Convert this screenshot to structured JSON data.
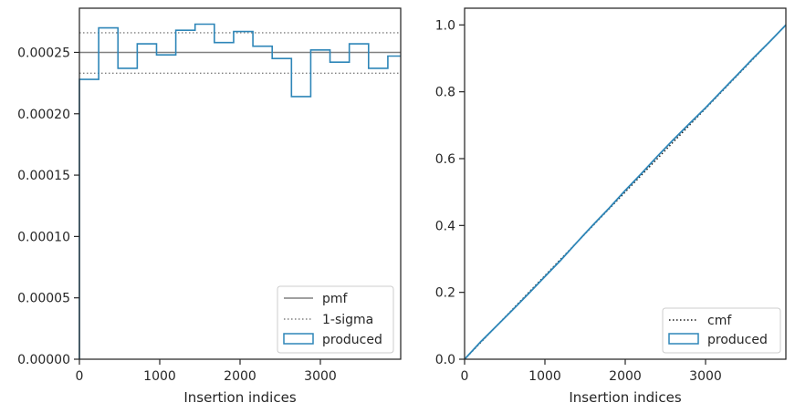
{
  "colors": {
    "produced": "#2e86b8",
    "pmf": "#808080",
    "sigma": "#808080",
    "cmf": "#1a1a1a",
    "axis": "#262626"
  },
  "chart_data": [
    {
      "type": "histogram",
      "xlabel": "Insertion indices",
      "xlim": [
        0,
        4000
      ],
      "ylim": [
        0,
        0.000286
      ],
      "xticks": [
        0,
        1000,
        2000,
        3000
      ],
      "xtick_labels": [
        "0",
        "1000",
        "2000",
        "3000"
      ],
      "yticks": [
        0,
        5e-05,
        0.0001,
        0.00015,
        0.0002,
        0.00025
      ],
      "ytick_labels": [
        "0.00000",
        "0.00005",
        "0.00010",
        "0.00015",
        "0.00020",
        "0.00025"
      ],
      "legend": {
        "position": "lower-right",
        "entries": [
          {
            "label": "pmf",
            "style": "solid-line"
          },
          {
            "label": "1-sigma",
            "style": "dotted-line"
          },
          {
            "label": "produced",
            "style": "step-box"
          }
        ]
      },
      "pmf": 0.00025,
      "sigma_band": [
        0.000233,
        0.000266
      ],
      "bin_edges": [
        0,
        240,
        480,
        720,
        960,
        1200,
        1440,
        1680,
        1920,
        2160,
        2400,
        2640,
        2880,
        3120,
        3360,
        3600,
        3840,
        4000
      ],
      "values": [
        0.000228,
        0.00027,
        0.000237,
        0.000257,
        0.000248,
        0.000268,
        0.000273,
        0.000258,
        0.000267,
        0.000255,
        0.000245,
        0.000214,
        0.000252,
        0.000242,
        0.000257,
        0.000237,
        0.000247
      ]
    },
    {
      "type": "line",
      "xlabel": "Insertion indices",
      "xlim": [
        0,
        4000
      ],
      "ylim": [
        0,
        1.05
      ],
      "xticks": [
        0,
        1000,
        2000,
        3000
      ],
      "xtick_labels": [
        "0",
        "1000",
        "2000",
        "3000"
      ],
      "yticks": [
        0,
        0.2,
        0.4,
        0.6,
        0.8,
        1.0
      ],
      "ytick_labels": [
        "0.0",
        "0.2",
        "0.4",
        "0.6",
        "0.8",
        "1.0"
      ],
      "legend": {
        "position": "lower-right",
        "entries": [
          {
            "label": "cmf",
            "style": "dotted-line"
          },
          {
            "label": "produced",
            "style": "step-box"
          }
        ]
      },
      "series": [
        {
          "name": "cmf",
          "x": [
            0,
            4000
          ],
          "y": [
            0,
            1.0
          ]
        },
        {
          "name": "produced",
          "x": [
            0,
            200,
            400,
            600,
            800,
            1000,
            1200,
            1400,
            1600,
            1800,
            2000,
            2200,
            2400,
            2600,
            2800,
            3000,
            3200,
            3400,
            3600,
            3800,
            4000
          ],
          "y": [
            0,
            0.052,
            0.1,
            0.148,
            0.197,
            0.247,
            0.297,
            0.35,
            0.402,
            0.452,
            0.505,
            0.555,
            0.607,
            0.657,
            0.705,
            0.752,
            0.802,
            0.852,
            0.902,
            0.95,
            1.0
          ]
        }
      ]
    }
  ]
}
